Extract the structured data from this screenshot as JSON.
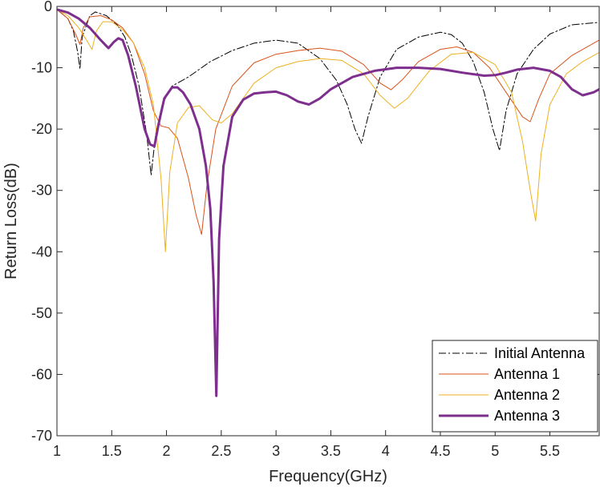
{
  "chart_data": {
    "type": "line",
    "title": "",
    "xlabel": "Frequency(GHz)",
    "ylabel": "Return Loss(dB)",
    "xlim": [
      1,
      5.95
    ],
    "ylim": [
      -70,
      0
    ],
    "xticks": [
      1,
      1.5,
      2,
      2.5,
      3,
      3.5,
      4,
      4.5,
      5,
      5.5
    ],
    "xtick_labels": [
      "1",
      "1.5",
      "2",
      "2.5",
      "3",
      "3.5",
      "4",
      "4.5",
      "5",
      "5.5"
    ],
    "yticks": [
      0,
      -10,
      -20,
      -30,
      -40,
      -50,
      -60,
      -70
    ],
    "ytick_labels": [
      "0",
      "-10",
      "-20",
      "-30",
      "-40",
      "-50",
      "-60",
      "-70"
    ],
    "grid": false,
    "legend_position": "bottom-right",
    "series": [
      {
        "name": "Initial Antenna",
        "color": "#000000",
        "style": "dashdot",
        "width": 1,
        "x": [
          1,
          1.1,
          1.15,
          1.19,
          1.21,
          1.23,
          1.3,
          1.35,
          1.45,
          1.55,
          1.62,
          1.68,
          1.75,
          1.82,
          1.86,
          1.9,
          1.96,
          2.05,
          2.2,
          2.4,
          2.6,
          2.8,
          3,
          3.2,
          3.4,
          3.55,
          3.65,
          3.72,
          3.78,
          3.84,
          3.95,
          4.1,
          4.3,
          4.5,
          4.6,
          4.7,
          4.8,
          4.9,
          4.98,
          5.04,
          5.1,
          5.2,
          5.35,
          5.5,
          5.7,
          5.95
        ],
        "y": [
          -0.5,
          -2,
          -4,
          -7.5,
          -10.2,
          -5,
          -1.5,
          -0.9,
          -1.5,
          -3,
          -5,
          -8,
          -13,
          -21,
          -27.5,
          -21,
          -16,
          -13,
          -11.5,
          -9,
          -7.2,
          -6,
          -5.5,
          -6,
          -8.5,
          -12,
          -16,
          -20,
          -22.3,
          -18,
          -11.5,
          -7,
          -5,
          -4.2,
          -4.6,
          -6,
          -9,
          -14,
          -20,
          -23.5,
          -17,
          -11,
          -7,
          -4.5,
          -3,
          -2.6
        ]
      },
      {
        "name": "Antenna 1",
        "color": "#D95319",
        "style": "solid",
        "width": 1,
        "x": [
          1,
          1.1,
          1.17,
          1.21,
          1.24,
          1.3,
          1.4,
          1.5,
          1.6,
          1.7,
          1.8,
          1.88,
          1.95,
          2.02,
          2.1,
          2.2,
          2.27,
          2.32,
          2.37,
          2.45,
          2.6,
          2.8,
          3,
          3.2,
          3.4,
          3.6,
          3.8,
          3.95,
          4.05,
          4.15,
          4.3,
          4.5,
          4.65,
          4.8,
          4.95,
          5.1,
          5.25,
          5.32,
          5.4,
          5.5,
          5.7,
          5.95
        ],
        "y": [
          -0.5,
          -2,
          -4.5,
          -6.2,
          -3.5,
          -1.7,
          -1.5,
          -2.2,
          -3.5,
          -6,
          -11,
          -17,
          -19.5,
          -19.8,
          -21.5,
          -28,
          -34,
          -37.2,
          -29,
          -20,
          -13,
          -9.2,
          -7.8,
          -7.2,
          -6.8,
          -7.3,
          -9.5,
          -12.5,
          -13.6,
          -12,
          -9,
          -7,
          -6.6,
          -7.5,
          -10,
          -14,
          -18,
          -18.8,
          -15,
          -11,
          -8,
          -5.5
        ]
      },
      {
        "name": "Antenna 2",
        "color": "#EDB120",
        "style": "solid",
        "width": 1,
        "x": [
          1,
          1.1,
          1.2,
          1.27,
          1.32,
          1.36,
          1.42,
          1.5,
          1.6,
          1.7,
          1.8,
          1.88,
          1.95,
          1.99,
          2.03,
          2.1,
          2.2,
          2.3,
          2.42,
          2.5,
          2.6,
          2.8,
          3,
          3.2,
          3.4,
          3.6,
          3.8,
          3.95,
          4.08,
          4.2,
          4.4,
          4.6,
          4.8,
          5,
          5.15,
          5.25,
          5.32,
          5.37,
          5.42,
          5.5,
          5.65,
          5.8,
          5.95
        ],
        "y": [
          -0.5,
          -1.5,
          -3.5,
          -5.5,
          -7,
          -4,
          -2.5,
          -2.5,
          -3.8,
          -6,
          -10,
          -16,
          -28,
          -40,
          -27,
          -19,
          -16.5,
          -16.2,
          -18.5,
          -19,
          -17.5,
          -12.5,
          -10,
          -9,
          -8.5,
          -8.8,
          -11,
          -14.5,
          -16.6,
          -15,
          -10.5,
          -7.8,
          -7.5,
          -9.5,
          -14,
          -22,
          -30,
          -35,
          -24,
          -16,
          -11,
          -9,
          -7.5
        ]
      },
      {
        "name": "Antenna 3",
        "color": "#7E2F8E",
        "style": "solid",
        "width": 3,
        "x": [
          1,
          1.1,
          1.2,
          1.3,
          1.4,
          1.47,
          1.52,
          1.56,
          1.6,
          1.65,
          1.72,
          1.8,
          1.85,
          1.89,
          1.93,
          1.98,
          2.05,
          2.1,
          2.15,
          2.22,
          2.3,
          2.36,
          2.4,
          2.43,
          2.455,
          2.48,
          2.52,
          2.6,
          2.7,
          2.8,
          2.9,
          3,
          3.1,
          3.2,
          3.3,
          3.4,
          3.5,
          3.7,
          3.9,
          4.1,
          4.3,
          4.5,
          4.7,
          4.9,
          5,
          5.1,
          5.2,
          5.35,
          5.5,
          5.6,
          5.7,
          5.8,
          5.9,
          5.95
        ],
        "y": [
          -0.5,
          -1,
          -2,
          -3.5,
          -5.5,
          -6.8,
          -5.8,
          -5.2,
          -5.5,
          -8,
          -13,
          -20,
          -22.5,
          -22.8,
          -19,
          -15,
          -13.2,
          -13.2,
          -14,
          -16,
          -20,
          -26,
          -33,
          -45,
          -63.5,
          -38,
          -26,
          -18,
          -15.2,
          -14.2,
          -14,
          -13.9,
          -14.5,
          -15.5,
          -16,
          -15,
          -13.5,
          -11.5,
          -10.5,
          -10,
          -10,
          -10.2,
          -10.8,
          -11.3,
          -11.2,
          -10.8,
          -10.3,
          -10,
          -10.5,
          -11.5,
          -13.5,
          -14.5,
          -14,
          -13.5
        ]
      }
    ]
  }
}
